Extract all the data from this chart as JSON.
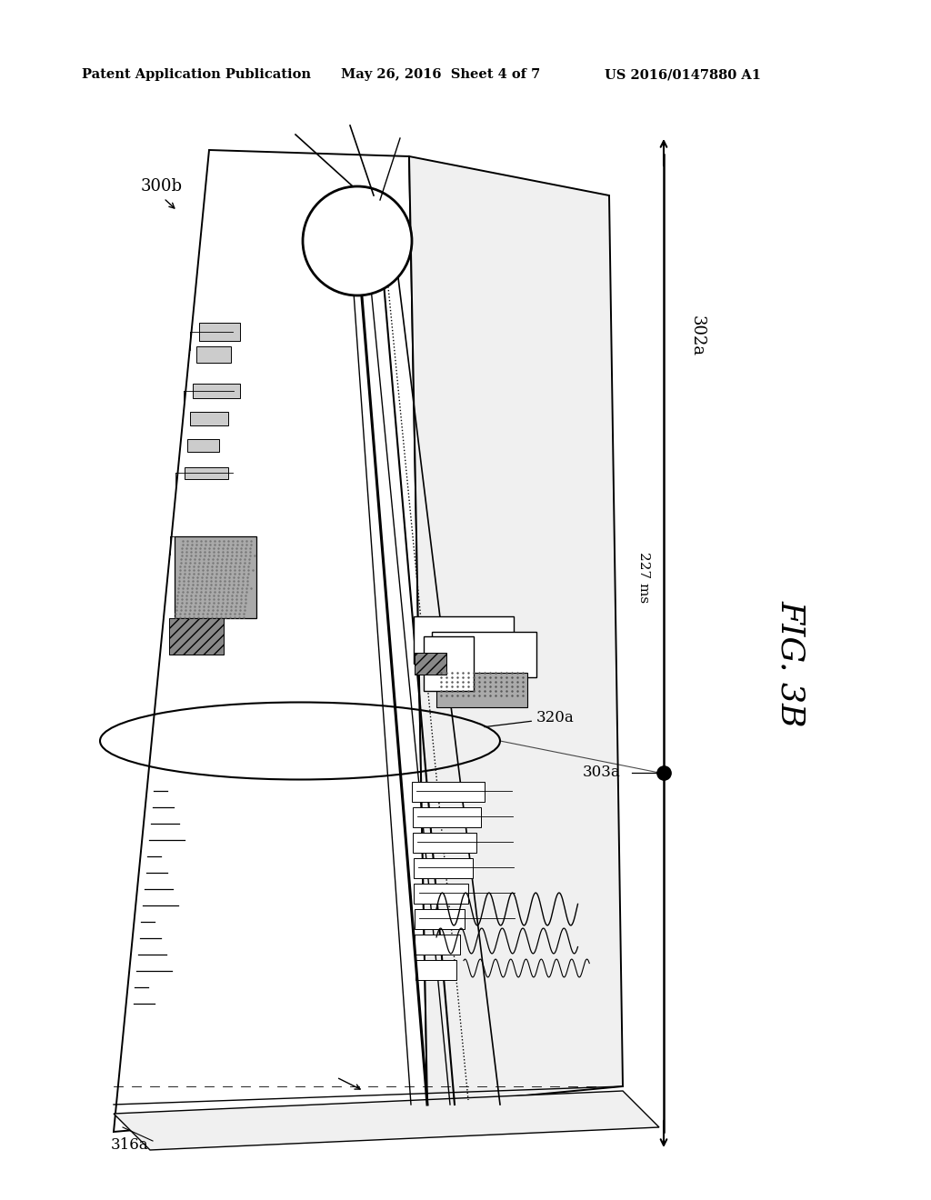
{
  "title_left": "Patent Application Publication",
  "title_mid": "May 26, 2016  Sheet 4 of 7",
  "title_right": "US 2016/0147880 A1",
  "fig_label": "FIG. 3B",
  "label_300b": "300b",
  "label_302a": "302a",
  "label_303a": "303a",
  "label_316a": "316a",
  "label_320a": "320a",
  "label_227ms": "227 ms",
  "bg_color": "#ffffff",
  "lc": "#000000",
  "gray1": "#aaaaaa",
  "gray2": "#cccccc",
  "gray3": "#888888",
  "gray4": "#bbbbbb",
  "dotgray": "#999999"
}
